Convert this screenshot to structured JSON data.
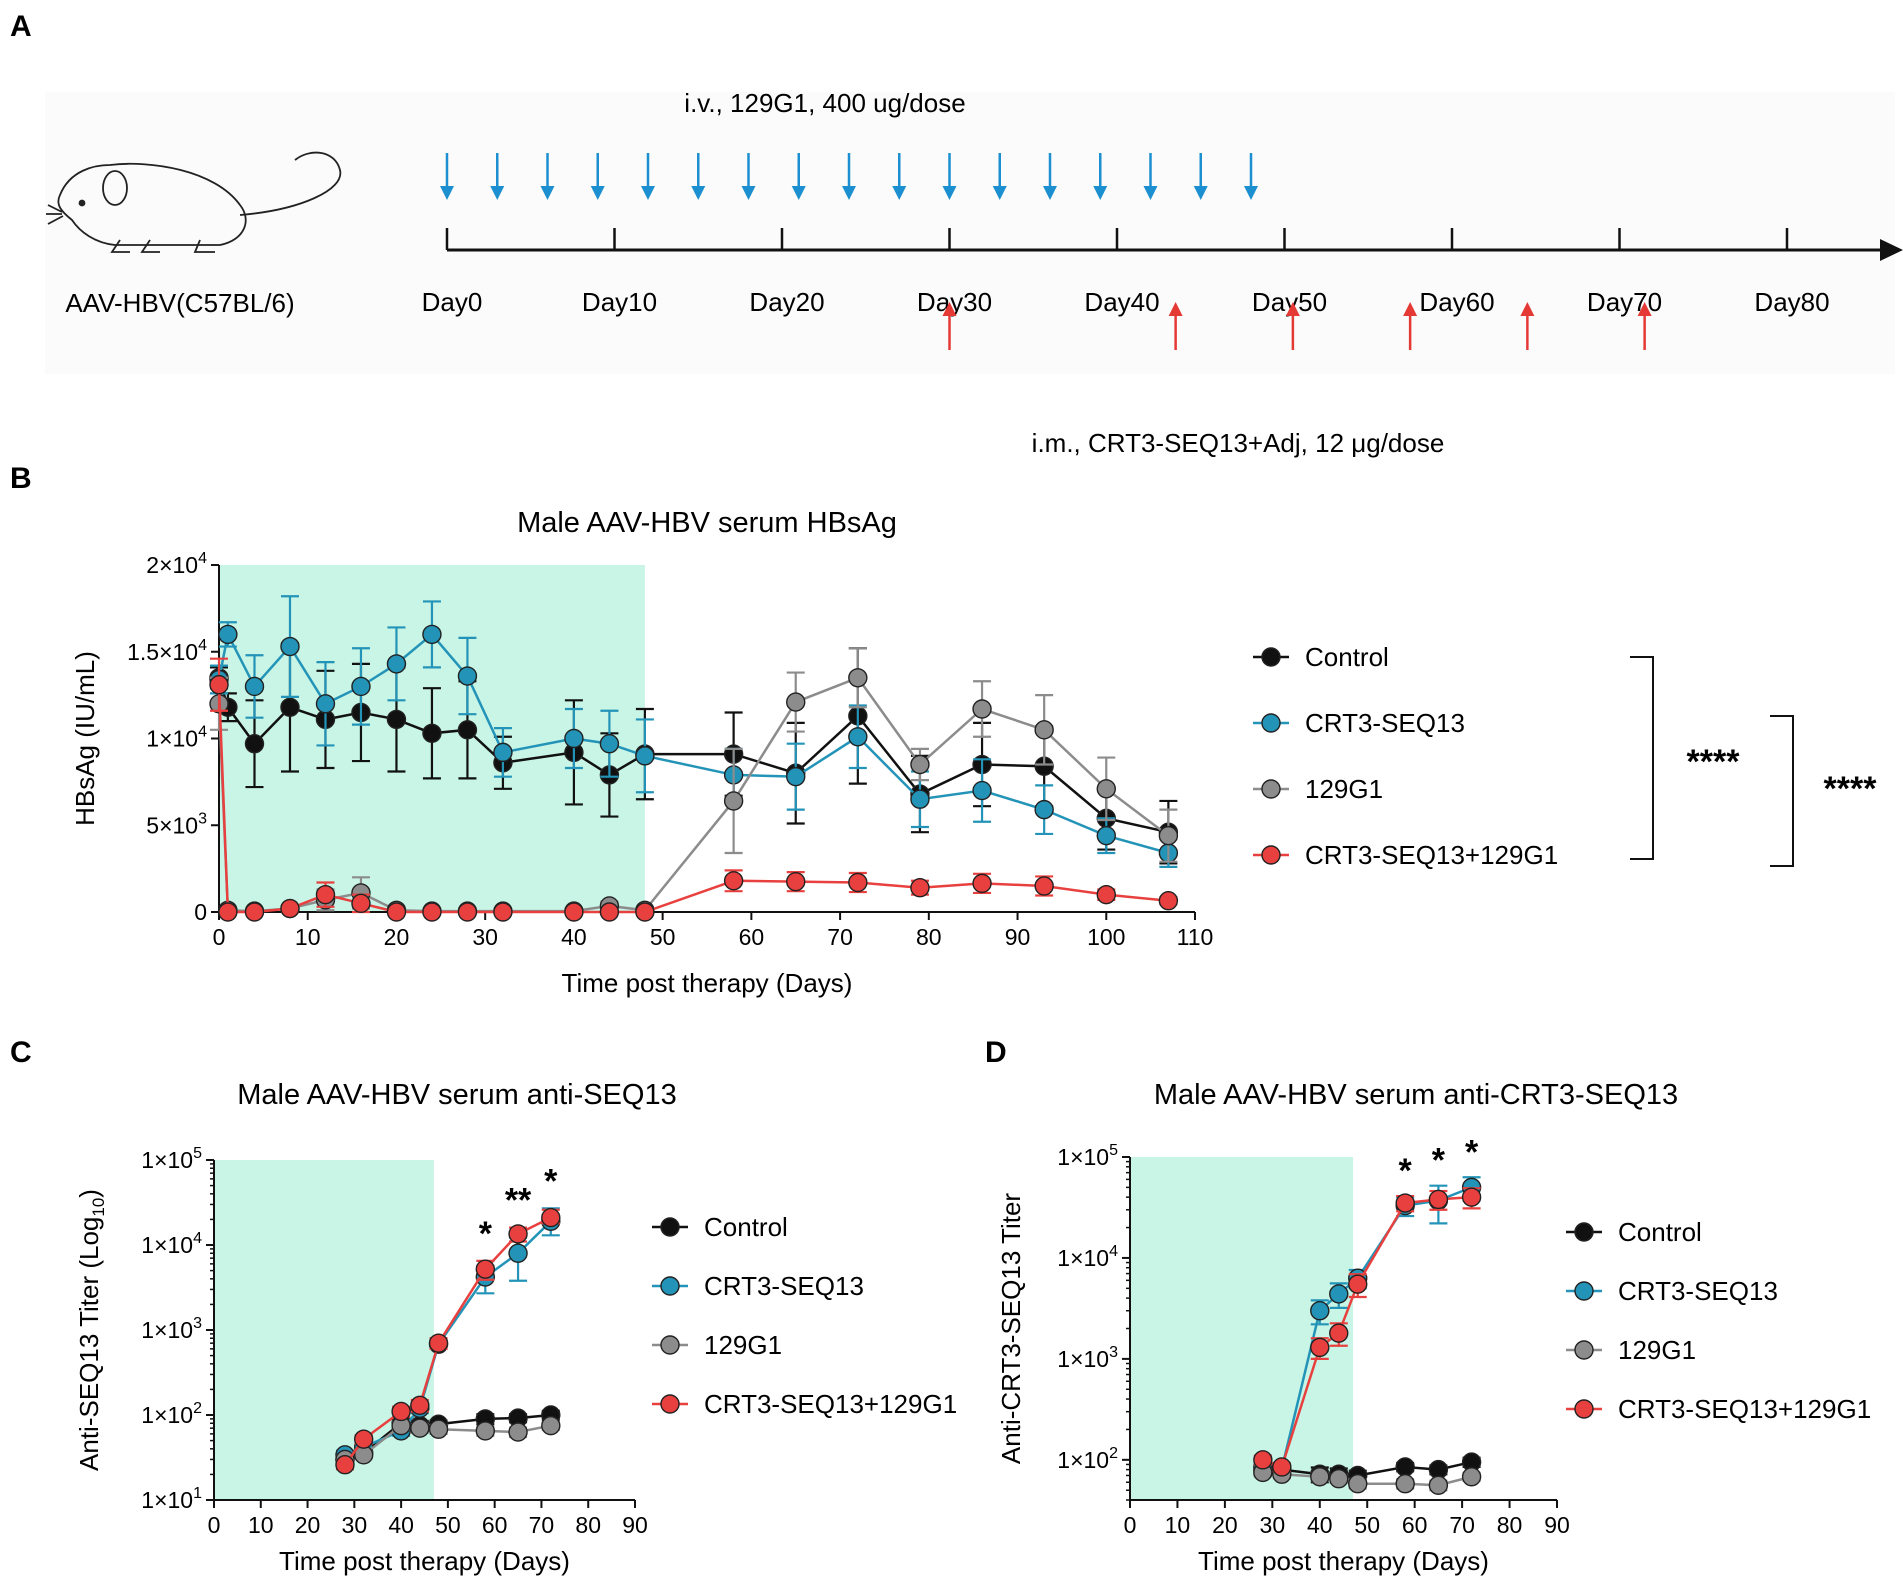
{
  "panelA": {
    "letter": "A",
    "mouse_label": "AAV-HBV(C57BL/6)",
    "top_label": "i.v., 129G1, 400 ug/dose",
    "bottom_label": "i.m., CRT3-SEQ13+Adj, 12 μg/dose",
    "day_ticks": [
      {
        "day": 0,
        "label": "Day0"
      },
      {
        "day": 10,
        "label": "Day10"
      },
      {
        "day": 20,
        "label": "Day20"
      },
      {
        "day": 30,
        "label": "Day30"
      },
      {
        "day": 40,
        "label": "Day40"
      },
      {
        "day": 50,
        "label": "Day50"
      },
      {
        "day": 60,
        "label": "Day60"
      },
      {
        "day": 70,
        "label": "Day70"
      },
      {
        "day": 80,
        "label": "Day80"
      }
    ],
    "iv_days": [
      0,
      3,
      6,
      9,
      12,
      15,
      18,
      21,
      24,
      27,
      30,
      33,
      36,
      39,
      42,
      45,
      48
    ],
    "im_days": [
      30,
      43.5,
      50.5,
      57.5,
      64.5,
      71.5
    ],
    "colors": {
      "iv": "#1b8fd0",
      "im": "#e53935",
      "axis": "#111111"
    }
  },
  "colors": {
    "Control": "#111111",
    "CRT3-SEQ13": "#2394b8",
    "129G1": "#8c8c8c",
    "CRT3-SEQ13+129G1": "#e8403e",
    "shade": "#c8f5e6"
  },
  "chart_data": [
    {
      "id": "B",
      "letter": "B",
      "type": "line",
      "title": "Male AAV-HBV serum HBsAg",
      "xlabel": "Time post therapy (Days)",
      "ylabel": "HBsAg (IU/mL)",
      "xlim": [
        0,
        110
      ],
      "ylim": [
        0,
        20000
      ],
      "yscale": "linear",
      "xticks": [
        0,
        10,
        20,
        30,
        40,
        50,
        60,
        70,
        80,
        90,
        100,
        110
      ],
      "xtick_labels": [
        "0",
        "10",
        "20",
        "30",
        "40",
        "50",
        "60",
        "70",
        "80",
        "90",
        "100",
        "110"
      ],
      "yticks": [
        0,
        5000,
        10000,
        15000,
        20000
      ],
      "ytick_base": [
        "0",
        "5×10",
        "1×10",
        "1.5×10",
        "2×10"
      ],
      "ytick_exp": [
        "",
        "3",
        "4",
        "4",
        "4"
      ],
      "shade_x": [
        0,
        48
      ],
      "legend": [
        "Control",
        "CRT3-SEQ13",
        "129G1",
        "CRT3-SEQ13+129G1"
      ],
      "significance": [
        {
          "label": "****",
          "between": [
            "Control",
            "CRT3-SEQ13+129G1"
          ]
        },
        {
          "label": "****",
          "between": [
            "CRT3-SEQ13",
            "CRT3-SEQ13+129G1"
          ]
        }
      ],
      "series": [
        {
          "name": "Control",
          "x": [
            0,
            1,
            4,
            8,
            12,
            16,
            20,
            24,
            28,
            32,
            40,
            44,
            48,
            58,
            65,
            72,
            79,
            86,
            93,
            100,
            107
          ],
          "y": [
            13500,
            11800,
            9700,
            11800,
            11100,
            11500,
            11100,
            10300,
            10500,
            8600,
            9200,
            7900,
            9100,
            9100,
            8000,
            11300,
            6800,
            8500,
            8400,
            5400,
            4600
          ],
          "err": [
            600,
            800,
            2500,
            3700,
            2800,
            2800,
            3000,
            2600,
            2800,
            1500,
            3000,
            2400,
            2600,
            2400,
            2900,
            3900,
            2200,
            2400,
            2300,
            1800,
            1800
          ]
        },
        {
          "name": "CRT3-SEQ13",
          "x": [
            0,
            1,
            4,
            8,
            12,
            16,
            20,
            24,
            28,
            32,
            40,
            44,
            48,
            58,
            65,
            72,
            79,
            86,
            93,
            100,
            107
          ],
          "y": [
            13400,
            16000,
            13000,
            15300,
            12000,
            13000,
            14300,
            16000,
            13600,
            9200,
            10000,
            9700,
            9000,
            7900,
            7800,
            10100,
            6500,
            7000,
            5900,
            4400,
            3400
          ],
          "err": [
            800,
            700,
            1800,
            2900,
            2400,
            2200,
            2100,
            1900,
            2200,
            1400,
            1700,
            1900,
            2100,
            1500,
            1900,
            1800,
            1600,
            1800,
            1400,
            1000,
            800
          ]
        },
        {
          "name": "129G1",
          "x": [
            0,
            1,
            4,
            8,
            12,
            16,
            20,
            24,
            28,
            32,
            40,
            44,
            48,
            58,
            65,
            72,
            79,
            86,
            93,
            100,
            107
          ],
          "y": [
            12000,
            100,
            50,
            200,
            700,
            1100,
            100,
            50,
            50,
            50,
            50,
            350,
            100,
            6400,
            12100,
            13500,
            8500,
            11700,
            10500,
            7100,
            4400
          ],
          "err": [
            1500,
            100,
            50,
            200,
            600,
            900,
            100,
            50,
            50,
            50,
            50,
            250,
            100,
            3000,
            1700,
            1700,
            900,
            1600,
            2000,
            1800,
            1500
          ]
        },
        {
          "name": "CRT3-SEQ13+129G1",
          "x": [
            0,
            1,
            4,
            8,
            12,
            16,
            20,
            24,
            28,
            32,
            40,
            44,
            48,
            58,
            65,
            72,
            79,
            86,
            93,
            100,
            107
          ],
          "y": [
            13100,
            0,
            0,
            200,
            1000,
            500,
            0,
            0,
            0,
            0,
            0,
            0,
            0,
            1800,
            1750,
            1700,
            1400,
            1650,
            1500,
            1000,
            650
          ],
          "err": [
            1500,
            0,
            0,
            200,
            700,
            500,
            0,
            0,
            0,
            0,
            0,
            0,
            0,
            600,
            550,
            550,
            400,
            550,
            550,
            300,
            200
          ]
        }
      ]
    },
    {
      "id": "C",
      "letter": "C",
      "type": "line",
      "title": "Male AAV-HBV serum anti-SEQ13",
      "xlabel": "Time post therapy (Days)",
      "ylabel_main": "Anti-SEQ13 Titer (Log",
      "ylabel_sub": "10",
      "ylabel_end": ")",
      "xlim": [
        0,
        90
      ],
      "ylim": [
        10,
        100000
      ],
      "yscale": "log",
      "xticks": [
        0,
        10,
        20,
        30,
        40,
        50,
        60,
        70,
        80,
        90
      ],
      "xtick_labels": [
        "0",
        "10",
        "20",
        "30",
        "40",
        "50",
        "60",
        "70",
        "80",
        "90"
      ],
      "yticks": [
        10,
        100,
        1000,
        10000,
        100000
      ],
      "ytick_base": [
        "1×10",
        "1×10",
        "1×10",
        "1×10",
        "1×10"
      ],
      "ytick_exp": [
        "1",
        "2",
        "3",
        "4",
        "5"
      ],
      "shade_x": [
        0,
        47
      ],
      "legend": [
        "Control",
        "CRT3-SEQ13",
        "129G1",
        "CRT3-SEQ13+129G1"
      ],
      "significance": [
        {
          "x": 58,
          "label": "*"
        },
        {
          "x": 65,
          "label": "**"
        },
        {
          "x": 72,
          "label": "*"
        }
      ],
      "series": [
        {
          "name": "Control",
          "x": [
            28,
            32,
            40,
            44,
            48,
            58,
            65,
            72
          ],
          "y": [
            30,
            36,
            80,
            75,
            78,
            90,
            92,
            100
          ],
          "err_lo": [
            4,
            4,
            12,
            10,
            8,
            12,
            10,
            12
          ],
          "err_hi": [
            4,
            4,
            12,
            10,
            8,
            12,
            10,
            12
          ]
        },
        {
          "name": "CRT3-SEQ13",
          "x": [
            28,
            32,
            40,
            44,
            48,
            58,
            65,
            72
          ],
          "y": [
            34,
            42,
            65,
            120,
            680,
            4200,
            8000,
            19000
          ],
          "err_lo": [
            4,
            5,
            8,
            15,
            80,
            1500,
            4200,
            6000
          ],
          "err_hi": [
            4,
            5,
            8,
            15,
            80,
            1500,
            4200,
            8000
          ]
        },
        {
          "name": "129G1",
          "x": [
            28,
            32,
            40,
            44,
            48,
            58,
            65,
            72
          ],
          "y": [
            30,
            34,
            75,
            70,
            68,
            65,
            63,
            75
          ],
          "err_lo": [
            3,
            3,
            8,
            8,
            8,
            8,
            8,
            8
          ],
          "err_hi": [
            3,
            3,
            8,
            8,
            8,
            8,
            8,
            8
          ]
        },
        {
          "name": "CRT3-SEQ13+129G1",
          "x": [
            28,
            32,
            40,
            44,
            48,
            58,
            65,
            72
          ],
          "y": [
            26,
            52,
            110,
            130,
            700,
            5200,
            13500,
            21000
          ],
          "err_lo": [
            3,
            6,
            15,
            20,
            100,
            1300,
            2500,
            3000
          ],
          "err_hi": [
            3,
            6,
            15,
            20,
            100,
            1300,
            2500,
            5000
          ]
        }
      ]
    },
    {
      "id": "D",
      "letter": "D",
      "type": "line",
      "title": "Male AAV-HBV serum anti-CRT3-SEQ13",
      "xlabel": "Time post therapy (Days)",
      "ylabel": "Anti-CRT3-SEQ13 Titer",
      "xlim": [
        0,
        90
      ],
      "ylim": [
        40,
        100000
      ],
      "yscale": "log",
      "xticks": [
        0,
        10,
        20,
        30,
        40,
        50,
        60,
        70,
        80,
        90
      ],
      "xtick_labels": [
        "0",
        "10",
        "20",
        "30",
        "40",
        "50",
        "60",
        "70",
        "80",
        "90"
      ],
      "yticks": [
        100,
        1000,
        10000,
        100000
      ],
      "ytick_base": [
        "1×10",
        "1×10",
        "1×10",
        "1×10"
      ],
      "ytick_exp": [
        "2",
        "3",
        "4",
        "5"
      ],
      "shade_x": [
        0,
        47
      ],
      "legend": [
        "Control",
        "CRT3-SEQ13",
        "129G1",
        "CRT3-SEQ13+129G1"
      ],
      "significance": [
        {
          "x": 58,
          "label": "*"
        },
        {
          "x": 65,
          "label": "*"
        },
        {
          "x": 72,
          "label": "*"
        }
      ],
      "series": [
        {
          "name": "Control",
          "x": [
            28,
            32,
            40,
            44,
            48,
            58,
            65,
            72
          ],
          "y": [
            80,
            80,
            72,
            72,
            70,
            85,
            80,
            95
          ],
          "err_lo": [
            10,
            8,
            12,
            10,
            8,
            8,
            8,
            10
          ],
          "err_hi": [
            10,
            8,
            12,
            10,
            8,
            8,
            8,
            10
          ]
        },
        {
          "name": "CRT3-SEQ13",
          "x": [
            28,
            32,
            40,
            44,
            48,
            58,
            65,
            72
          ],
          "y": [
            85,
            82,
            3000,
            4400,
            6300,
            33000,
            37000,
            50000
          ],
          "err_lo": [
            8,
            8,
            800,
            1200,
            1300,
            7000,
            15000,
            13000
          ],
          "err_hi": [
            8,
            8,
            800,
            1200,
            1300,
            7000,
            15000,
            13000
          ]
        },
        {
          "name": "129G1",
          "x": [
            28,
            32,
            40,
            44,
            48,
            58,
            65,
            72
          ],
          "y": [
            75,
            72,
            68,
            65,
            58,
            58,
            56,
            68
          ],
          "err_lo": [
            6,
            6,
            6,
            6,
            6,
            6,
            6,
            6
          ],
          "err_hi": [
            6,
            6,
            6,
            6,
            6,
            6,
            6,
            6
          ]
        },
        {
          "name": "CRT3-SEQ13+129G1",
          "x": [
            28,
            32,
            40,
            44,
            48,
            58,
            65,
            72
          ],
          "y": [
            100,
            85,
            1300,
            1800,
            5500,
            35000,
            38000,
            40000
          ],
          "err_lo": [
            10,
            8,
            300,
            450,
            1400,
            6000,
            8000,
            9000
          ],
          "err_hi": [
            10,
            8,
            300,
            450,
            1400,
            6000,
            8000,
            9000
          ]
        }
      ]
    }
  ]
}
